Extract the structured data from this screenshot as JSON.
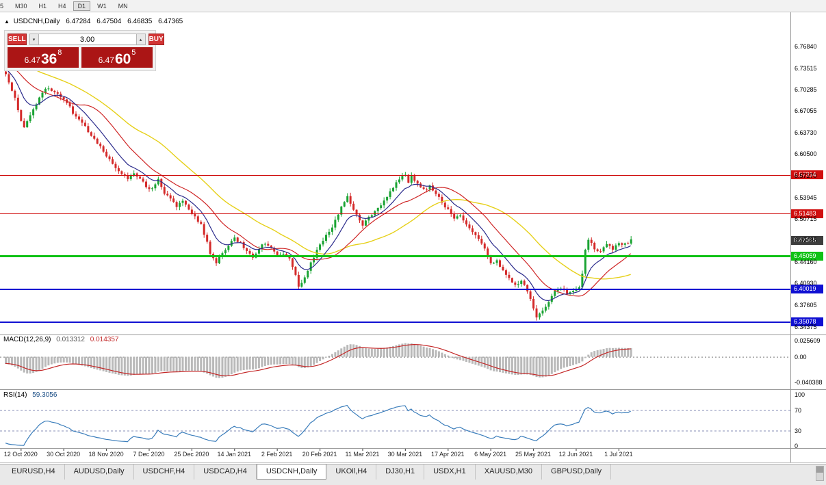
{
  "toolbar": {
    "timeframes": [
      "5",
      "M30",
      "H1",
      "H4",
      "D1",
      "W1",
      "MN"
    ],
    "active_timeframe": "D1"
  },
  "header": {
    "collapse_icon": "▲",
    "symbol": "USDCNH,Daily",
    "open": "6.47284",
    "high": "6.47504",
    "low": "6.46835",
    "close": "6.47365"
  },
  "trade_panel": {
    "sell_label": "SELL",
    "buy_label": "BUY",
    "volume": "3.00",
    "sell_price": {
      "base": "6.47",
      "main": "36",
      "sup": "8"
    },
    "buy_price": {
      "base": "6.47",
      "main": "60",
      "sup": "5"
    }
  },
  "icons": {
    "volume_down": "▾",
    "volume_up": "▴"
  },
  "y_axis_labels": [
    "6.76840",
    "6.73515",
    "6.70285",
    "6.67055",
    "6.63730",
    "6.60500",
    "6.57270",
    "6.53945",
    "6.50715",
    "6.47485",
    "6.44160",
    "6.40930",
    "6.37605",
    "6.34375"
  ],
  "levels": [
    {
      "name": "resistance-upper",
      "value": 6.57314,
      "label": "6.57314",
      "color": "#d00f0f",
      "width": 1
    },
    {
      "name": "resistance-lower",
      "value": 6.51483,
      "label": "6.51483",
      "color": "#d00f0f",
      "width": 1
    },
    {
      "name": "support-green",
      "value": 6.45059,
      "label": "6.45059",
      "color": "#0fc215",
      "width": 3
    },
    {
      "name": "support-blue-upper",
      "value": 6.40019,
      "label": "6.40019",
      "color": "#1010d2",
      "width": 2
    },
    {
      "name": "support-blue-lower",
      "value": 6.35078,
      "label": "6.35078",
      "color": "#1010d2",
      "width": 2
    }
  ],
  "current_price": {
    "value": 6.47365,
    "label": "6.47365",
    "color": "#3d3d3d"
  },
  "x_axis_labels": [
    {
      "bar": 5,
      "label": "12 Oct 2020"
    },
    {
      "bar": 19,
      "label": "30 Oct 2020"
    },
    {
      "bar": 33,
      "label": "18 Nov 2020"
    },
    {
      "bar": 47,
      "label": "7 Dec 2020"
    },
    {
      "bar": 61,
      "label": "25 Dec 2020"
    },
    {
      "bar": 75,
      "label": "14 Jan 2021"
    },
    {
      "bar": 89,
      "label": "2 Feb 2021"
    },
    {
      "bar": 103,
      "label": "20 Feb 2021"
    },
    {
      "bar": 117,
      "label": "11 Mar 2021"
    },
    {
      "bar": 131,
      "label": "30 Mar 2021"
    },
    {
      "bar": 145,
      "label": "17 Apr 2021"
    },
    {
      "bar": 159,
      "label": "6 May 2021"
    },
    {
      "bar": 173,
      "label": "25 May 2021"
    },
    {
      "bar": 187,
      "label": "12 Jun 2021"
    },
    {
      "bar": 201,
      "label": "1 Jul 2021"
    }
  ],
  "macd_panel": {
    "title": "MACD(12,26,9)",
    "value_main": "0.013312",
    "value_signal": "0.014357",
    "scale": [
      {
        "value": 0.025609,
        "label": "0.025609"
      },
      {
        "value": 0,
        "label": "0.00"
      },
      {
        "value": -0.040388,
        "label": "-0.040388"
      }
    ]
  },
  "rsi_panel": {
    "title": "RSI(14)",
    "value": "59.3056",
    "scale": [
      {
        "value": 100,
        "label": "100"
      },
      {
        "value": 70,
        "label": "70"
      },
      {
        "value": 30,
        "label": "30"
      },
      {
        "value": 0,
        "label": "0"
      }
    ],
    "level_lines": [
      70,
      30
    ]
  },
  "tabs": {
    "items": [
      "EURUSD,H4",
      "AUDUSD,Daily",
      "USDCHF,H4",
      "USDCAD,H4",
      "USDCNH,Daily",
      "UKOil,H4",
      "DJ30,H1",
      "USDX,H1",
      "XAUUSD,M30",
      "GBPUSD,Daily"
    ],
    "active": "USDCNH,Daily"
  },
  "colors": {
    "bull": "#1aa333",
    "bear": "#d42a2a",
    "macd_hist": "#b9b9b9",
    "macd_signal": "#c42828",
    "rsi_line": "#3a7dbb"
  },
  "chart_data": {
    "type": "candlestick",
    "symbol": "USDCNH",
    "timeframe": "Daily",
    "bars": 206,
    "y_range": [
      6.333,
      6.82
    ],
    "indicators_ma": [
      {
        "type": "ema",
        "period": 10,
        "color": "#2b2b8c"
      },
      {
        "type": "sma",
        "period": 20,
        "color": "#cf2626"
      },
      {
        "type": "sma",
        "period": 40,
        "color": "#e6d019"
      }
    ],
    "price_path": [
      [
        0,
        6.728
      ],
      [
        1,
        6.715
      ],
      [
        3,
        6.69
      ],
      [
        5,
        6.655
      ],
      [
        6,
        6.648
      ],
      [
        8,
        6.662
      ],
      [
        10,
        6.68
      ],
      [
        12,
        6.7
      ],
      [
        14,
        6.706
      ],
      [
        16,
        6.7
      ],
      [
        18,
        6.692
      ],
      [
        20,
        6.684
      ],
      [
        22,
        6.668
      ],
      [
        24,
        6.658
      ],
      [
        26,
        6.648
      ],
      [
        28,
        6.633
      ],
      [
        30,
        6.622
      ],
      [
        32,
        6.608
      ],
      [
        34,
        6.598
      ],
      [
        36,
        6.585
      ],
      [
        38,
        6.577
      ],
      [
        40,
        6.565
      ],
      [
        42,
        6.578
      ],
      [
        44,
        6.568
      ],
      [
        46,
        6.556
      ],
      [
        48,
        6.552
      ],
      [
        50,
        6.566
      ],
      [
        52,
        6.546
      ],
      [
        54,
        6.536
      ],
      [
        56,
        6.526
      ],
      [
        58,
        6.534
      ],
      [
        60,
        6.52
      ],
      [
        62,
        6.51
      ],
      [
        64,
        6.498
      ],
      [
        65,
        6.483
      ],
      [
        66,
        6.471
      ],
      [
        67,
        6.455
      ],
      [
        69,
        6.442
      ],
      [
        71,
        6.455
      ],
      [
        73,
        6.467
      ],
      [
        75,
        6.477
      ],
      [
        77,
        6.47
      ],
      [
        79,
        6.459
      ],
      [
        81,
        6.45
      ],
      [
        83,
        6.462
      ],
      [
        85,
        6.471
      ],
      [
        87,
        6.461
      ],
      [
        89,
        6.453
      ],
      [
        91,
        6.456
      ],
      [
        93,
        6.446
      ],
      [
        95,
        6.422
      ],
      [
        96,
        6.406
      ],
      [
        97,
        6.41
      ],
      [
        98,
        6.42
      ],
      [
        100,
        6.44
      ],
      [
        102,
        6.459
      ],
      [
        104,
        6.475
      ],
      [
        106,
        6.487
      ],
      [
        108,
        6.504
      ],
      [
        110,
        6.526
      ],
      [
        112,
        6.541
      ],
      [
        113,
        6.529
      ],
      [
        115,
        6.513
      ],
      [
        117,
        6.499
      ],
      [
        119,
        6.509
      ],
      [
        121,
        6.519
      ],
      [
        123,
        6.529
      ],
      [
        125,
        6.541
      ],
      [
        127,
        6.555
      ],
      [
        129,
        6.567
      ],
      [
        131,
        6.576
      ],
      [
        132,
        6.563
      ],
      [
        133,
        6.571
      ],
      [
        135,
        6.561
      ],
      [
        137,
        6.551
      ],
      [
        139,
        6.557
      ],
      [
        141,
        6.545
      ],
      [
        143,
        6.533
      ],
      [
        145,
        6.52
      ],
      [
        147,
        6.509
      ],
      [
        149,
        6.513
      ],
      [
        151,
        6.499
      ],
      [
        153,
        6.489
      ],
      [
        155,
        6.479
      ],
      [
        157,
        6.463
      ],
      [
        159,
        6.438
      ],
      [
        161,
        6.444
      ],
      [
        163,
        6.429
      ],
      [
        165,
        6.416
      ],
      [
        167,
        6.406
      ],
      [
        169,
        6.413
      ],
      [
        171,
        6.398
      ],
      [
        172,
        6.385
      ],
      [
        173,
        6.371
      ],
      [
        174,
        6.359
      ],
      [
        175,
        6.364
      ],
      [
        176,
        6.369
      ],
      [
        178,
        6.383
      ],
      [
        180,
        6.396
      ],
      [
        182,
        6.403
      ],
      [
        184,
        6.396
      ],
      [
        186,
        6.399
      ],
      [
        188,
        6.404
      ],
      [
        189,
        6.423
      ],
      [
        190,
        6.459
      ],
      [
        191,
        6.476
      ],
      [
        193,
        6.463
      ],
      [
        195,
        6.456
      ],
      [
        197,
        6.469
      ],
      [
        199,
        6.459
      ],
      [
        201,
        6.471
      ],
      [
        203,
        6.468
      ],
      [
        205,
        6.474
      ]
    ]
  }
}
